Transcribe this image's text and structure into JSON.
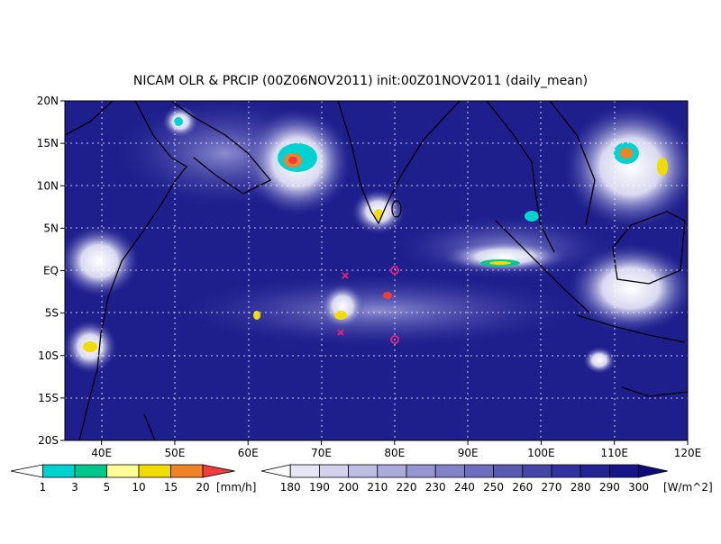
{
  "title": "NICAM OLR & PRCIP (00Z06NOV2011) init:00Z01NOV2011 (daily_mean)",
  "map": {
    "lat_labels": [
      "20N",
      "15N",
      "10N",
      "5N",
      "EQ",
      "5S",
      "10S",
      "15S",
      "20S"
    ],
    "lon_labels": [
      "40E",
      "50E",
      "60E",
      "70E",
      "80E",
      "90E",
      "100E",
      "110E",
      "120E"
    ]
  },
  "precip_legend": {
    "labels": [
      1,
      3,
      5,
      10,
      15,
      20
    ],
    "unit": "[mm/h]",
    "colors": [
      "#ffffff",
      "#00d2d2",
      "#00c88c",
      "#ffff96",
      "#f0dc00",
      "#f08228",
      "#f03c3c"
    ]
  },
  "olr_legend": {
    "labels": [
      180,
      190,
      200,
      210,
      220,
      230,
      240,
      250,
      260,
      270,
      280,
      290,
      300
    ],
    "unit": "[W/m^2]",
    "colors": [
      "#ffffff",
      "#e6e6f5",
      "#d2d2ec",
      "#bebee4",
      "#aaaadc",
      "#9696d2",
      "#8282c8",
      "#6e6ebe",
      "#5a5ab4",
      "#4646aa",
      "#3232a0",
      "#232396",
      "#16168a",
      "#0c0c7a"
    ]
  }
}
